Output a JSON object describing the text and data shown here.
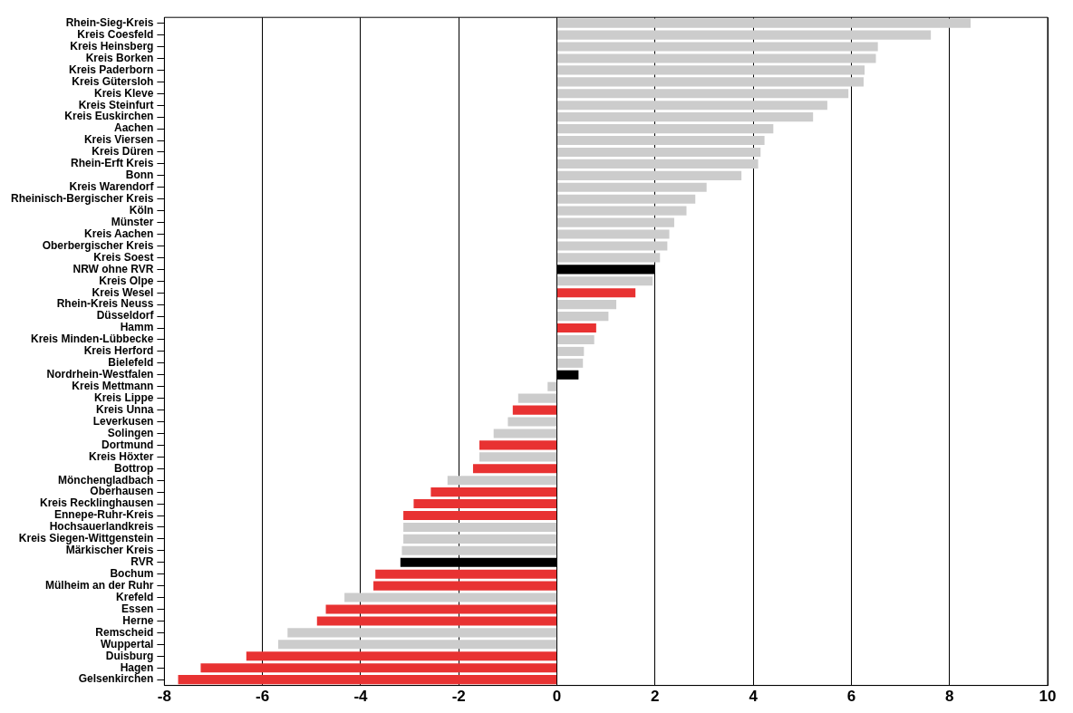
{
  "chart_data": {
    "type": "bar",
    "orientation": "horizontal",
    "grid": "x",
    "legend": false,
    "categories": [
      "Rhein-Sieg-Kreis",
      "Kreis Coesfeld",
      "Kreis Heinsberg",
      "Kreis Borken",
      "Kreis Paderborn",
      "Kreis Gütersloh",
      "Kreis Kleve",
      "Kreis Steinfurt",
      "Kreis Euskirchen",
      "Aachen",
      "Kreis Viersen",
      "Kreis Düren",
      "Rhein-Erft Kreis",
      "Bonn",
      "Kreis Warendorf",
      "Rheinisch-Bergischer Kreis",
      "Köln",
      "Münster",
      "Kreis Aachen",
      "Oberbergischer Kreis",
      "Kreis Soest",
      "NRW ohne RVR",
      "Kreis Olpe",
      "Kreis Wesel",
      "Rhein-Kreis Neuss",
      "Düsseldorf",
      "Hamm",
      "Kreis Minden-Lübbecke",
      "Kreis Herford",
      "Bielefeld",
      "Nordrhein-Westfalen",
      "Kreis Mettmann",
      "Kreis Lippe",
      "Kreis Unna",
      "Leverkusen",
      "Solingen",
      "Dortmund",
      "Kreis Höxter",
      "Bottrop",
      "Mönchengladbach",
      "Oberhausen",
      "Kreis Recklinghausen",
      "Ennepe-Ruhr-Kreis",
      "Hochsauerlandkreis",
      "Kreis Siegen-Wittgenstein",
      "Märkischer Kreis",
      "RVR",
      "Bochum",
      "Mülheim an der Ruhr",
      "Krefeld",
      "Essen",
      "Herne",
      "Remscheid",
      "Wuppertal",
      "Duisburg",
      "Hagen",
      "Gelsenkirchen"
    ],
    "values": [
      8.43,
      7.62,
      6.54,
      6.5,
      6.27,
      6.25,
      5.94,
      5.51,
      5.22,
      4.41,
      4.23,
      4.15,
      4.1,
      3.76,
      3.05,
      2.82,
      2.64,
      2.39,
      2.29,
      2.25,
      2.1,
      2.0,
      1.95,
      1.6,
      1.21,
      1.05,
      0.8,
      0.76,
      0.55,
      0.53,
      0.44,
      -0.19,
      -0.79,
      -0.9,
      -1.0,
      -1.29,
      -1.58,
      -1.58,
      -1.71,
      -2.23,
      -2.57,
      -2.92,
      -3.13,
      -3.13,
      -3.13,
      -3.16,
      -3.19,
      -3.7,
      -3.74,
      -4.33,
      -4.71,
      -4.89,
      -5.49,
      -5.68,
      -6.33,
      -7.26,
      -7.72
    ],
    "colors": [
      "#cccccc",
      "#cccccc",
      "#cccccc",
      "#cccccc",
      "#cccccc",
      "#cccccc",
      "#cccccc",
      "#cccccc",
      "#cccccc",
      "#cccccc",
      "#cccccc",
      "#cccccc",
      "#cccccc",
      "#cccccc",
      "#cccccc",
      "#cccccc",
      "#cccccc",
      "#cccccc",
      "#cccccc",
      "#cccccc",
      "#cccccc",
      "#000000",
      "#cccccc",
      "#e83232",
      "#cccccc",
      "#cccccc",
      "#e83232",
      "#cccccc",
      "#cccccc",
      "#cccccc",
      "#000000",
      "#cccccc",
      "#cccccc",
      "#e83232",
      "#cccccc",
      "#cccccc",
      "#e83232",
      "#cccccc",
      "#e83232",
      "#cccccc",
      "#e83232",
      "#e83232",
      "#e83232",
      "#cccccc",
      "#cccccc",
      "#cccccc",
      "#000000",
      "#e83232",
      "#e83232",
      "#cccccc",
      "#e83232",
      "#e83232",
      "#cccccc",
      "#cccccc",
      "#e83232",
      "#e83232",
      "#e83232"
    ],
    "xlim": [
      -8,
      10
    ],
    "xticks": [
      -8,
      -6,
      -4,
      -2,
      0,
      2,
      4,
      6,
      8,
      10
    ]
  }
}
